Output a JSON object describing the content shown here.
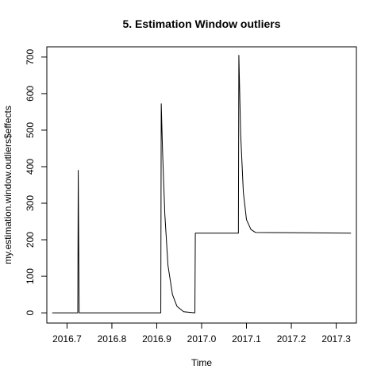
{
  "chart_data": {
    "type": "line",
    "title": "5. Estimation Window outliers",
    "xlabel": "Time",
    "ylabel": "my.estimation.window.outliers$effects",
    "xlim": [
      2016.655,
      2017.345
    ],
    "ylim": [
      -28,
      728
    ],
    "xticks": [
      2016.7,
      2016.8,
      2016.9,
      2017.0,
      2017.1,
      2017.2,
      2017.3
    ],
    "xtick_labels": [
      "2016.7",
      "2016.8",
      "2016.9",
      "2017.0",
      "2017.1",
      "2017.2",
      "2017.3"
    ],
    "yticks": [
      0,
      100,
      200,
      300,
      400,
      500,
      600,
      700
    ],
    "ytick_labels": [
      "0",
      "100",
      "200",
      "300",
      "400",
      "500",
      "600",
      "700"
    ],
    "grid": false,
    "series": [
      {
        "x": [
          2016.667,
          2016.724,
          2016.725,
          2016.727,
          2016.909,
          2016.91,
          2016.913,
          2016.918,
          2016.925,
          2016.935,
          2016.945,
          2016.96,
          2016.985,
          2016.986,
          2017.082,
          2017.083,
          2017.087,
          2017.093,
          2017.1,
          2017.11,
          2017.12,
          2017.333
        ],
        "y": [
          0,
          0,
          390,
          0,
          0,
          572,
          440,
          270,
          130,
          50,
          18,
          3,
          0,
          218,
          218,
          705,
          490,
          330,
          255,
          228,
          220,
          218
        ]
      }
    ]
  }
}
